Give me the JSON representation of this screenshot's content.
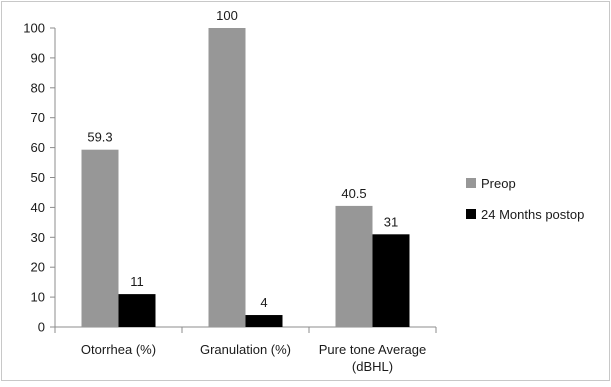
{
  "chart_data": {
    "type": "bar",
    "categories": [
      [
        "Otorrhea (%)"
      ],
      [
        "Granulation (%)"
      ],
      [
        "Pure tone Average",
        "(dBHL)"
      ]
    ],
    "series": [
      {
        "name": "Preop",
        "values": [
          59.3,
          100,
          40.5
        ],
        "labels": [
          "59.3",
          "100",
          "40.5"
        ],
        "color": "#979797"
      },
      {
        "name": "24 Months postop",
        "values": [
          11,
          4,
          31
        ],
        "labels": [
          "11",
          "4",
          "31"
        ],
        "color": "#000000"
      }
    ],
    "yticks": [
      "0",
      "10",
      "20",
      "30",
      "40",
      "50",
      "60",
      "70",
      "80",
      "90",
      "100"
    ],
    "ylim": [
      0,
      100
    ],
    "grid": false,
    "legend_position": "right"
  }
}
